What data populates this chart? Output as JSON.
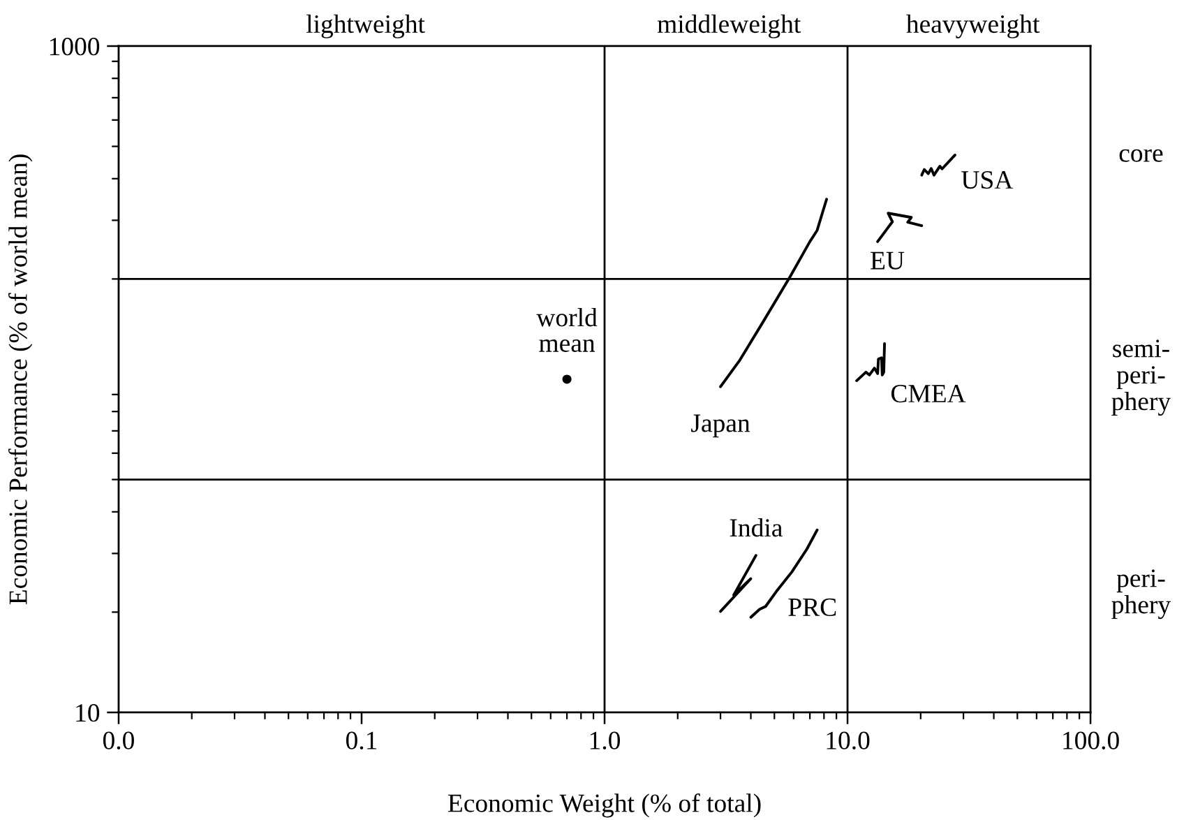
{
  "chart_data": {
    "type": "line",
    "xlabel": "Economic Weight (% of total)",
    "ylabel": "Economic Performance (% of world mean)",
    "log": "xy",
    "grid": false,
    "legend": false,
    "xlim": [
      0.01,
      100
    ],
    "xticks": [
      {
        "value": 0.01,
        "label": "0.0"
      },
      0.1,
      {
        "value": 1,
        "label": "1.0"
      },
      {
        "value": 10,
        "label": "10.0"
      },
      {
        "value": 100,
        "label": "100.0"
      }
    ],
    "ylim": [
      10,
      1000
    ],
    "yticks": [
      10,
      1000
    ],
    "ref_lines": [
      {
        "axis": "x",
        "value": 1,
        "color": "#000000"
      },
      {
        "axis": "x",
        "value": 10,
        "color": "#000000"
      },
      {
        "axis": "y",
        "value": 200,
        "color": "#000000"
      },
      {
        "axis": "y",
        "value": 50,
        "color": "#000000"
      }
    ],
    "annotations": [
      "lightweight",
      "middleweight",
      "heavyweight",
      "core",
      "semi-\nperi-\nphery",
      "peri-\nphery"
    ],
    "series": [
      {
        "name": "USA",
        "color": "#000000",
        "x": [
          20.2,
          20.7,
          21.5,
          22.1,
          22.7,
          24.0,
          24.5,
          27.7
        ],
        "values": [
          410,
          426,
          414,
          429,
          410,
          436,
          428,
          471
        ]
      },
      {
        "name": "EU",
        "color": "#000000",
        "x": [
          13.3,
          15.3,
          14.7,
          18.3,
          17.7,
          20.2
        ],
        "values": [
          259,
          297,
          315,
          306,
          296,
          289
        ]
      },
      {
        "name": "CMEA",
        "color": "#000000",
        "x": [
          10.9,
          11.9,
          12.3,
          12.9,
          13.3,
          13.4,
          13.8,
          13.9,
          14.1,
          14.2
        ],
        "values": [
          99,
          105,
          103,
          108,
          104,
          115,
          116,
          103,
          105,
          128
        ]
      },
      {
        "name": "Japan",
        "color": "#000000",
        "x": [
          3.0,
          3.6,
          4.5,
          5.8,
          7.0,
          7.5,
          7.8,
          8.2
        ],
        "values": [
          95,
          114,
          149,
          203,
          259,
          280,
          308,
          347
        ]
      },
      {
        "name": "India",
        "color": "#000000",
        "x": [
          4.2,
          3.4,
          4.0,
          3.0
        ],
        "values": [
          29.6,
          22.5,
          25.2,
          20.1
        ]
      },
      {
        "name": "PRC",
        "color": "#000000",
        "x": [
          7.5,
          6.8,
          5.9,
          5.1,
          4.6,
          4.35,
          4.0
        ],
        "values": [
          35.3,
          30.9,
          26.4,
          23.1,
          20.8,
          20.4,
          19.3
        ]
      },
      {
        "name": "world\nmean",
        "type": "scatter",
        "marker": "circle",
        "color": "#000000",
        "x": [
          0.7
        ],
        "values": [
          100
        ]
      }
    ]
  }
}
